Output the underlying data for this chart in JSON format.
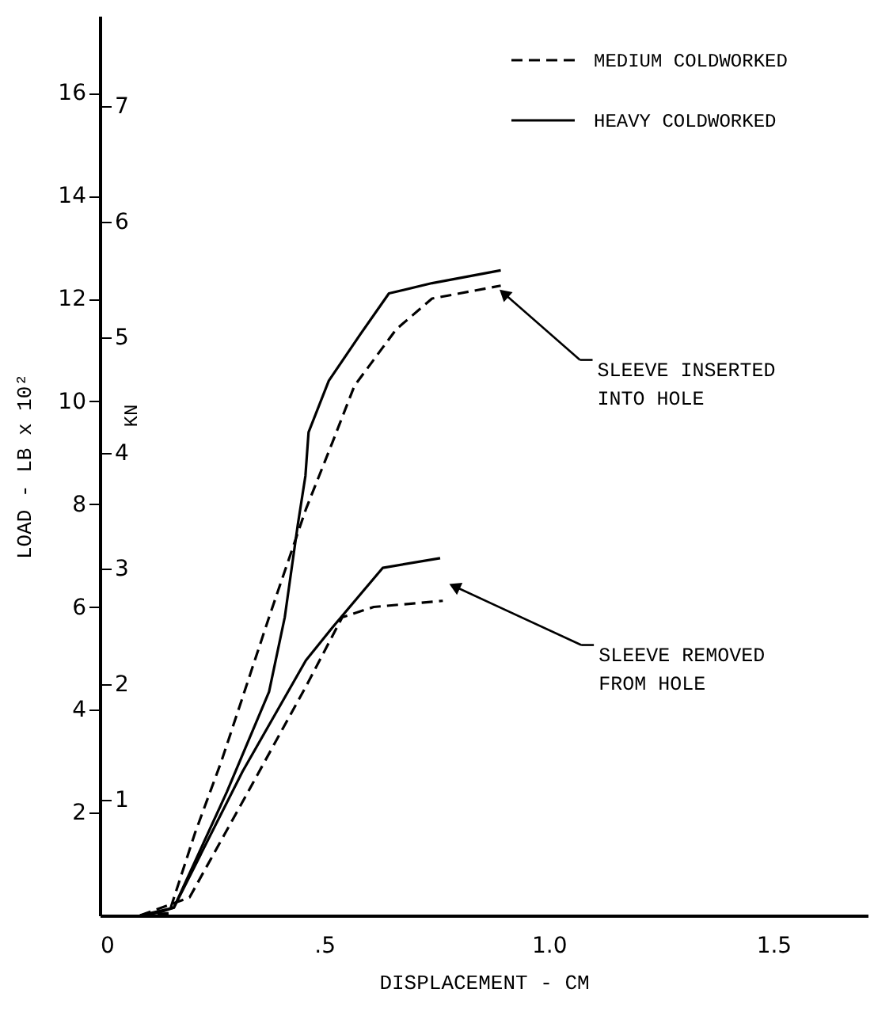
{
  "chart_data": {
    "type": "line",
    "xlabel": "DISPLACEMENT - CM",
    "ylabel": "LOAD - LB x 10²",
    "y2label": "KN",
    "xlim": [
      0,
      1.71
    ],
    "xticks": [
      {
        "value": 0,
        "label": "0"
      },
      {
        "value": 0.5,
        "label": ".5"
      },
      {
        "value": 1.0,
        "label": "1.0"
      },
      {
        "value": 1.5,
        "label": "1.5"
      }
    ],
    "ylim": [
      0,
      17.5
    ],
    "yticks": [
      2,
      4,
      6,
      8,
      10,
      12,
      14,
      16
    ],
    "y2lim": [
      0,
      7.78
    ],
    "y2ticks": [
      1,
      2,
      3,
      4,
      5,
      6,
      7
    ],
    "grid": false,
    "legend": "top right",
    "marker": "none",
    "series": [
      {
        "name": "MEDIUM COLDWORKED",
        "color": "#000000",
        "line_style": "dashed",
        "x": [
          0.09,
          0.154,
          0.212,
          0.271,
          0.377,
          0.459,
          0.518,
          0.567,
          0.66,
          0.74,
          0.893
        ],
        "values": [
          0,
          0.04,
          1.6,
          3.0,
          5.8,
          7.9,
          9.2,
          10.3,
          11.4,
          12.0,
          12.25
        ]
      },
      {
        "name": "HEAVY COLDWORKED",
        "color": "#000000",
        "line_style": "solid",
        "x": [
          0.09,
          0.13,
          0.165,
          0.283,
          0.377,
          0.412,
          0.441,
          0.458,
          0.465,
          0.51,
          0.58,
          0.644,
          0.74,
          0.893
        ],
        "values": [
          0,
          0.05,
          0.15,
          2.4,
          4.35,
          5.8,
          7.6,
          8.55,
          9.4,
          10.4,
          11.3,
          12.1,
          12.3,
          12.55
        ]
      },
      {
        "color": "#000000",
        "line_style": "dashed",
        "x": [
          0.09,
          0.2,
          0.33,
          0.459,
          0.54,
          0.61,
          0.764
        ],
        "values": [
          0,
          0.35,
          2.4,
          4.45,
          5.8,
          6.0,
          6.12
        ]
      },
      {
        "color": "#000000",
        "line_style": "solid",
        "x": [
          0.09,
          0.165,
          0.318,
          0.459,
          0.518,
          0.63,
          0.758
        ],
        "values": [
          0,
          0.15,
          2.8,
          4.96,
          5.6,
          6.76,
          6.95
        ]
      }
    ],
    "annotations": [
      {
        "text": "SLEEVE INSERTED\nINTO HOLE",
        "x": 0.9,
        "y": 12.1
      },
      {
        "text": "SLEEVE REMOVED\nFROM HOLE",
        "x": 0.79,
        "y": 6.4
      }
    ]
  }
}
